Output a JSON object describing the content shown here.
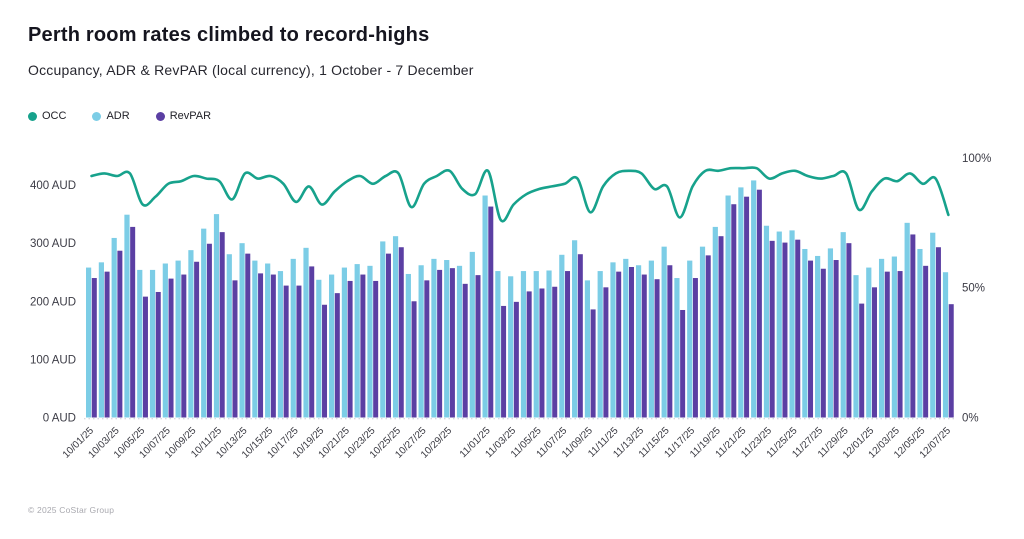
{
  "header": {
    "title": "Perth room rates climbed to record-highs",
    "subtitle": "Occupancy, ADR & RevPAR (local currency), 1 October - 7 December"
  },
  "legend": [
    {
      "label": "OCC",
      "color": "#17A28C"
    },
    {
      "label": "ADR",
      "color": "#7CCDE6"
    },
    {
      "label": "RevPAR",
      "color": "#5B3FA3"
    }
  ],
  "chart_data": {
    "type": "combo_bar_line",
    "title": "Perth room rates climbed to record-highs",
    "subtitle": "Occupancy, ADR & RevPAR (local currency), 1 October - 7 December",
    "x": [
      "10/01/25",
      "10/02/25",
      "10/03/25",
      "10/04/25",
      "10/05/25",
      "10/06/25",
      "10/07/25",
      "10/08/25",
      "10/09/25",
      "10/10/25",
      "10/11/25",
      "10/12/25",
      "10/13/25",
      "10/14/25",
      "10/15/25",
      "10/16/25",
      "10/17/25",
      "10/18/25",
      "10/19/25",
      "10/20/25",
      "10/21/25",
      "10/22/25",
      "10/23/25",
      "10/24/25",
      "10/25/25",
      "10/26/25",
      "10/27/25",
      "10/28/25",
      "10/29/25",
      "10/30/25",
      "10/31/25",
      "11/01/25",
      "11/02/25",
      "11/03/25",
      "11/04/25",
      "11/05/25",
      "11/06/25",
      "11/07/25",
      "11/08/25",
      "11/09/25",
      "11/10/25",
      "11/11/25",
      "11/12/25",
      "11/13/25",
      "11/14/25",
      "11/15/25",
      "11/16/25",
      "11/17/25",
      "11/18/25",
      "11/19/25",
      "11/20/25",
      "11/21/25",
      "11/22/25",
      "11/23/25",
      "11/24/25",
      "11/25/25",
      "11/26/25",
      "11/27/25",
      "11/28/25",
      "11/29/25",
      "11/30/25",
      "12/01/25",
      "12/02/25",
      "12/03/25",
      "12/04/25",
      "12/05/25",
      "12/06/25",
      "12/07/25"
    ],
    "series": [
      {
        "name": "OCC",
        "type": "line",
        "axis": "right",
        "unit": "%",
        "color": "#17A28C",
        "values": [
          93,
          94,
          93,
          94,
          82,
          85,
          90,
          91,
          93,
          92,
          91,
          84,
          94,
          92,
          93,
          90,
          83,
          89,
          82,
          87,
          91,
          93,
          90,
          93,
          94,
          81,
          90,
          93,
          95,
          88,
          86,
          95,
          76,
          82,
          86,
          88,
          89,
          90,
          92,
          79,
          89,
          94,
          95,
          94,
          88,
          89,
          77,
          89,
          95,
          95,
          96,
          96,
          96,
          92,
          94,
          95,
          93,
          92,
          93,
          94,
          80,
          87,
          92,
          91,
          94,
          90,
          92,
          78
        ]
      },
      {
        "name": "ADR",
        "type": "bar",
        "axis": "left",
        "unit": "AUD",
        "color": "#7CCDE6",
        "values": [
          258,
          267,
          309,
          349,
          254,
          254,
          265,
          270,
          288,
          325,
          350,
          281,
          300,
          270,
          265,
          252,
          273,
          292,
          237,
          246,
          258,
          264,
          261,
          303,
          312,
          247,
          262,
          273,
          271,
          261,
          285,
          382,
          252,
          243,
          252,
          252,
          253,
          280,
          305,
          236,
          252,
          267,
          273,
          262,
          270,
          294,
          240,
          270,
          294,
          328,
          382,
          396,
          408,
          330,
          320,
          322,
          290,
          278,
          291,
          319,
          245,
          258,
          273,
          277,
          335,
          290,
          318,
          250
        ]
      },
      {
        "name": "RevPAR",
        "type": "bar",
        "axis": "left",
        "unit": "AUD",
        "color": "#5B3FA3",
        "values": [
          240,
          251,
          287,
          328,
          208,
          216,
          239,
          246,
          268,
          299,
          319,
          236,
          282,
          248,
          246,
          227,
          227,
          260,
          194,
          214,
          235,
          246,
          235,
          282,
          293,
          200,
          236,
          254,
          257,
          230,
          245,
          363,
          192,
          199,
          217,
          222,
          225,
          252,
          281,
          186,
          224,
          251,
          259,
          246,
          238,
          262,
          185,
          240,
          279,
          312,
          367,
          380,
          392,
          304,
          301,
          306,
          270,
          256,
          271,
          300,
          196,
          224,
          251,
          252,
          315,
          261,
          293,
          195
        ]
      }
    ],
    "left_axis": {
      "max": 450,
      "ticks": [
        {
          "value": 0,
          "label": "0 AUD"
        },
        {
          "value": 100,
          "label": "100 AUD"
        },
        {
          "value": 200,
          "label": "200 AUD"
        },
        {
          "value": 300,
          "label": "300 AUD"
        },
        {
          "value": 400,
          "label": "400 AUD"
        }
      ]
    },
    "right_axis": {
      "max": 100,
      "ticks": [
        {
          "value": 0,
          "label": "0%"
        },
        {
          "value": 50,
          "label": "50%"
        },
        {
          "value": 100,
          "label": "100%"
        }
      ]
    },
    "x_ticks": [
      {
        "index": 0,
        "label": "10/01/25"
      },
      {
        "index": 2,
        "label": "10/03/25"
      },
      {
        "index": 4,
        "label": "10/05/25"
      },
      {
        "index": 6,
        "label": "10/07/25"
      },
      {
        "index": 8,
        "label": "10/09/25"
      },
      {
        "index": 10,
        "label": "10/11/25"
      },
      {
        "index": 12,
        "label": "10/13/25"
      },
      {
        "index": 14,
        "label": "10/15/25"
      },
      {
        "index": 16,
        "label": "10/17/25"
      },
      {
        "index": 18,
        "label": "10/19/25"
      },
      {
        "index": 20,
        "label": "10/21/25"
      },
      {
        "index": 22,
        "label": "10/23/25"
      },
      {
        "index": 24,
        "label": "10/25/25"
      },
      {
        "index": 26,
        "label": "10/27/25"
      },
      {
        "index": 28,
        "label": "10/29/25"
      },
      {
        "index": 31,
        "label": "11/01/25"
      },
      {
        "index": 33,
        "label": "11/03/25"
      },
      {
        "index": 35,
        "label": "11/05/25"
      },
      {
        "index": 37,
        "label": "11/07/25"
      },
      {
        "index": 39,
        "label": "11/09/25"
      },
      {
        "index": 41,
        "label": "11/11/25"
      },
      {
        "index": 43,
        "label": "11/13/25"
      },
      {
        "index": 45,
        "label": "11/15/25"
      },
      {
        "index": 47,
        "label": "11/17/25"
      },
      {
        "index": 49,
        "label": "11/19/25"
      },
      {
        "index": 51,
        "label": "11/21/25"
      },
      {
        "index": 53,
        "label": "11/23/25"
      },
      {
        "index": 55,
        "label": "11/25/25"
      },
      {
        "index": 57,
        "label": "11/27/25"
      },
      {
        "index": 59,
        "label": "11/29/25"
      },
      {
        "index": 61,
        "label": "12/01/25"
      },
      {
        "index": 63,
        "label": "12/03/25"
      },
      {
        "index": 65,
        "label": "12/05/25"
      },
      {
        "index": 67,
        "label": "12/07/25"
      }
    ]
  },
  "footer": {
    "copyright": "© 2025 CoStar Group"
  }
}
